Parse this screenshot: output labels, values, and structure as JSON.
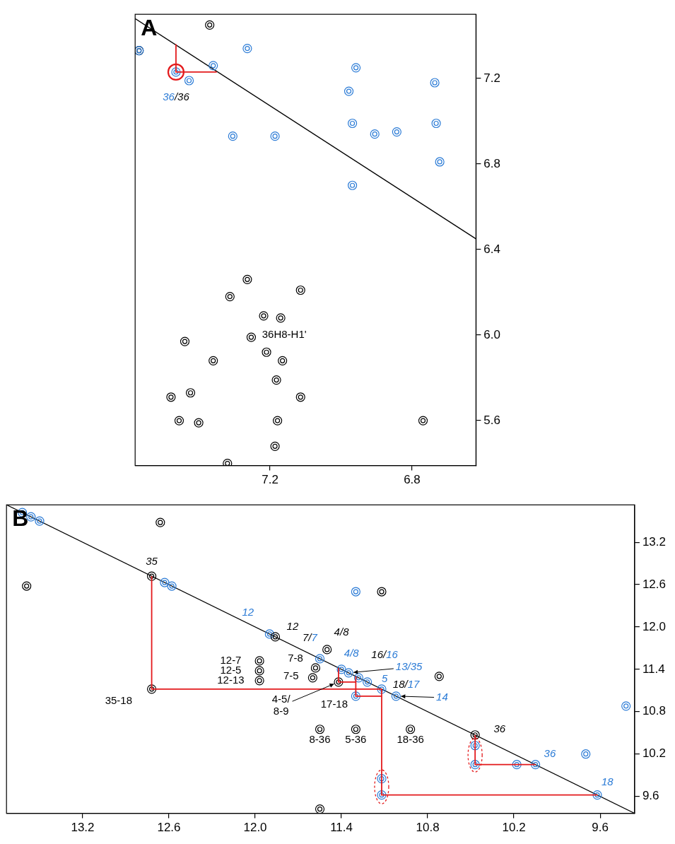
{
  "chart_data": [
    {
      "panel_label": "A",
      "type": "scatter",
      "xlim": [
        7.58,
        6.62
      ],
      "ylim": [
        5.39,
        7.5
      ],
      "xticks": [
        7.2,
        6.8
      ],
      "yticks": [
        5.6,
        {
          "value": 6.0,
          "label": "6.0"
        },
        6.4,
        6.8,
        7.2
      ],
      "grid": false,
      "series": [
        {
          "type": "line",
          "color": "#000000",
          "line_style": "solid",
          "x": [
            7.58,
            6.62
          ],
          "y": [
            7.48,
            6.45
          ]
        },
        {
          "type": "scatter",
          "marker": "contour",
          "color": "#000000",
          "x": [
            7.32,
            7.456,
            7.401,
            7.479,
            7.424,
            7.186,
            7.179,
            7.114,
            7.182,
            7.165,
            7.36,
            6.769,
            7.44,
            7.253,
            7.21,
            7.218,
            7.17,
            7.313,
            7.264,
            7.114,
            7.569,
            7.37
          ],
          "y": [
            5.4,
            5.6,
            5.59,
            5.71,
            5.73,
            5.48,
            5.6,
            5.71,
            5.79,
            5.88,
            5.88,
            5.6,
            5.97,
            5.99,
            5.92,
            6.09,
            6.08,
            6.18,
            6.26,
            6.21,
            7.33,
            7.45
          ]
        },
        {
          "type": "scatter",
          "marker": "contour",
          "color": "#2b7bd6",
          "x": [
            6.968,
            6.722,
            7.305,
            7.186,
            6.968,
            6.732,
            6.905,
            6.843,
            6.978,
            6.736,
            6.958,
            7.428,
            7.465,
            7.36,
            7.264,
            7.569
          ],
          "y": [
            6.7,
            6.81,
            6.93,
            6.93,
            6.99,
            6.99,
            6.94,
            6.95,
            7.14,
            7.18,
            7.25,
            7.19,
            7.23,
            7.26,
            7.34,
            7.33
          ]
        },
        {
          "type": "line",
          "color": "#e31a1c",
          "line_style": "solid",
          "x": [
            7.35,
            7.465,
            7.465
          ],
          "y": [
            7.23,
            7.23,
            7.36
          ]
        },
        {
          "type": "scatter",
          "marker": "ring",
          "color": "#e31a1c",
          "x": [
            7.465
          ],
          "y": [
            7.23
          ]
        }
      ],
      "annotations": [
        {
          "text": "36H8-H1'",
          "x": 7.16,
          "y": 6.0,
          "color": "#000000"
        },
        {
          "parts": [
            {
              "text": "36",
              "color": "#2b7bd6"
            },
            {
              "text": "/36",
              "color": "#000000"
            }
          ],
          "x": 7.465,
          "y": 7.11
        }
      ]
    },
    {
      "panel_label": "B",
      "type": "scatter",
      "xlim": [
        13.73,
        9.36
      ],
      "ylim": [
        9.36,
        13.73
      ],
      "xticks": [
        13.2,
        12.6,
        {
          "value": 12.0,
          "label": "12.0"
        },
        11.4,
        10.8,
        10.2,
        9.6
      ],
      "yticks": [
        9.6,
        10.2,
        10.8,
        11.4,
        {
          "value": 12.0,
          "label": "12.0"
        },
        12.6,
        13.2
      ],
      "grid": false,
      "series": [
        {
          "type": "line",
          "color": "#000000",
          "line_style": "solid",
          "x": [
            13.73,
            9.36
          ],
          "y": [
            13.73,
            9.36
          ]
        },
        {
          "type": "scatter",
          "marker": "contour",
          "color": "#2b7bd6",
          "x": [
            9.62,
            10.05,
            11.02,
            11.12,
            11.22,
            11.28,
            11.35,
            11.4,
            11.55,
            11.9,
            12.58,
            12.63,
            13.5,
            13.56,
            13.62,
            11.12,
            11.12,
            10.47,
            10.47,
            10.18,
            11.3,
            11.3,
            9.42,
            9.7
          ],
          "y": [
            9.62,
            10.05,
            11.02,
            11.12,
            11.22,
            11.28,
            11.35,
            11.4,
            11.55,
            11.9,
            12.58,
            12.63,
            13.5,
            13.56,
            13.62,
            9.62,
            9.85,
            10.05,
            10.32,
            10.05,
            11.02,
            12.5,
            10.88,
            10.2
          ]
        },
        {
          "type": "scatter",
          "marker": "contour",
          "color": "#000000",
          "x": [
            10.47,
            11.86,
            12.72,
            11.55,
            11.3,
            10.92,
            12.72,
            11.42,
            11.97,
            11.97,
            11.97,
            11.6,
            11.58,
            11.5,
            10.72,
            11.12,
            13.59,
            12.66,
            11.55
          ],
          "y": [
            10.47,
            11.86,
            12.72,
            10.55,
            10.55,
            10.55,
            11.12,
            11.22,
            11.24,
            11.38,
            11.52,
            11.28,
            11.42,
            11.68,
            11.3,
            12.5,
            12.58,
            13.48,
            9.42
          ]
        },
        {
          "type": "line",
          "color": "#e31a1c",
          "line_style": "solid",
          "x": [
            9.62,
            11.12,
            11.12
          ],
          "y": [
            9.62,
            9.62,
            11.12
          ]
        },
        {
          "type": "line",
          "color": "#e31a1c",
          "line_style": "solid",
          "x": [
            10.05,
            10.47,
            10.47
          ],
          "y": [
            10.05,
            10.05,
            10.47
          ]
        },
        {
          "type": "line",
          "color": "#e31a1c",
          "line_style": "solid",
          "x": [
            12.72,
            12.72,
            11.12
          ],
          "y": [
            12.72,
            11.12,
            11.12
          ]
        },
        {
          "type": "line",
          "color": "#e31a1c",
          "line_style": "solid",
          "x": [
            11.12,
            11.3,
            11.3
          ],
          "y": [
            11.02,
            11.02,
            11.3
          ]
        },
        {
          "type": "line",
          "color": "#e31a1c",
          "line_style": "solid",
          "x": [
            11.3,
            11.42,
            11.42
          ],
          "y": [
            11.22,
            11.22,
            11.42
          ]
        },
        {
          "type": "scatter",
          "marker": "dashed_ellipse",
          "color": "#e31a1c",
          "x": [
            11.12,
            10.47
          ],
          "y": [
            9.735,
            10.185
          ]
        }
      ],
      "annotations": [
        {
          "text": "35-18",
          "x": 12.95,
          "y": 10.95,
          "color": "#000000"
        },
        {
          "text": "8-36",
          "x": 11.55,
          "y": 10.4,
          "color": "#000000"
        },
        {
          "text": "5-36",
          "x": 11.3,
          "y": 10.4,
          "color": "#000000"
        },
        {
          "text": "18-36",
          "x": 10.92,
          "y": 10.4,
          "color": "#000000"
        },
        {
          "text": "17-18",
          "x": 11.45,
          "y": 10.9,
          "color": "#000000"
        },
        {
          "text": "4-5/\n8-9",
          "x": 11.82,
          "y": 10.88,
          "color": "#000000",
          "arrow_to": [
            11.42,
            11.22
          ]
        },
        {
          "text": "12-13",
          "x": 12.17,
          "y": 11.24,
          "color": "#000000"
        },
        {
          "text": "12-5",
          "x": 12.17,
          "y": 11.38,
          "color": "#000000"
        },
        {
          "text": "12-7",
          "x": 12.17,
          "y": 11.52,
          "color": "#000000"
        },
        {
          "text": "7-5",
          "x": 11.75,
          "y": 11.3,
          "color": "#000000"
        },
        {
          "text": "7-8",
          "x": 11.72,
          "y": 11.55,
          "color": "#000000"
        },
        {
          "text": "36",
          "x": 10.3,
          "y": 10.55,
          "color": "#000000"
        },
        {
          "text": "36",
          "x": 9.95,
          "y": 10.2,
          "color": "#2b7bd6"
        },
        {
          "text": "18",
          "x": 9.55,
          "y": 9.8,
          "color": "#2b7bd6"
        },
        {
          "text": "14",
          "x": 10.7,
          "y": 11.0,
          "color": "#2b7bd6",
          "arrow_to": [
            11.02,
            11.02
          ]
        },
        {
          "parts": [
            {
              "text": "18/",
              "color": "#000000"
            },
            {
              "text": "17",
              "color": "#2b7bd6"
            }
          ],
          "x": 10.95,
          "y": 11.18
        },
        {
          "text": "5",
          "x": 11.1,
          "y": 11.26,
          "color": "#2b7bd6"
        },
        {
          "text": "13/35",
          "x": 10.93,
          "y": 11.43,
          "color": "#2b7bd6",
          "arrow_to": [
            11.35,
            11.35
          ]
        },
        {
          "parts": [
            {
              "text": "16/",
              "color": "#000000"
            },
            {
              "text": "16",
              "color": "#2b7bd6"
            }
          ],
          "x": 11.1,
          "y": 11.6
        },
        {
          "text": "4/8",
          "x": 11.33,
          "y": 11.62,
          "color": "#2b7bd6"
        },
        {
          "parts": [
            {
              "text": "7/",
              "color": "#000000"
            },
            {
              "text": "7",
              "color": "#2b7bd6"
            }
          ],
          "x": 11.62,
          "y": 11.84
        },
        {
          "text": "4/8",
          "x": 11.4,
          "y": 11.92,
          "color": "#000000"
        },
        {
          "text": "12",
          "x": 12.05,
          "y": 12.2,
          "color": "#2b7bd6"
        },
        {
          "text": "12",
          "x": 11.74,
          "y": 12.0,
          "color": "#000000"
        },
        {
          "text": "35",
          "x": 12.72,
          "y": 12.92,
          "color": "#000000"
        }
      ]
    }
  ]
}
